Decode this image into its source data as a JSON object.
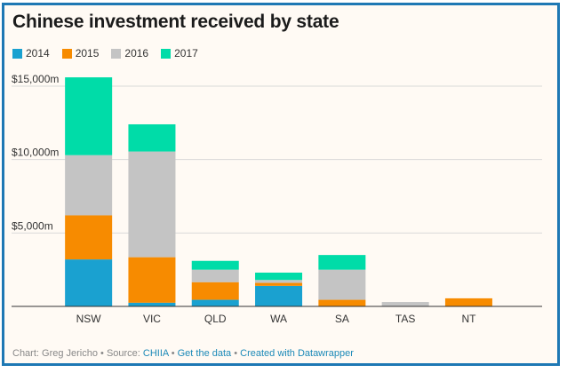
{
  "chart_data": {
    "type": "bar",
    "stacked": true,
    "title": "Chinese investment received by state",
    "categories": [
      "NSW",
      "VIC",
      "QLD",
      "WA",
      "SA",
      "TAS",
      "NT"
    ],
    "series": [
      {
        "name": "2014",
        "color": "#1aa1d0",
        "values": [
          3200,
          250,
          450,
          1400,
          0,
          0,
          0
        ]
      },
      {
        "name": "2015",
        "color": "#f78b00",
        "values": [
          3000,
          3100,
          1200,
          200,
          450,
          0,
          550
        ]
      },
      {
        "name": "2016",
        "color": "#c4c4c4",
        "values": [
          4100,
          7200,
          850,
          200,
          2050,
          300,
          0
        ]
      },
      {
        "name": "2017",
        "color": "#00dca8",
        "values": [
          5300,
          1850,
          600,
          500,
          1000,
          0,
          0
        ]
      }
    ],
    "y_ticks": [
      {
        "value": 15000,
        "label": "$15,000m"
      },
      {
        "value": 10000,
        "label": "$10,000m"
      },
      {
        "value": 5000,
        "label": "$5,000m"
      }
    ],
    "ylim": [
      0,
      15000
    ],
    "grid": true,
    "legend": "top-left"
  },
  "footer": {
    "credit": "Chart: Greg Jericho • Source: ",
    "source": "CHIIA",
    "sep1": " • ",
    "get_data": "Get the data",
    "sep2": " • ",
    "created_with": "Created with Datawrapper"
  }
}
